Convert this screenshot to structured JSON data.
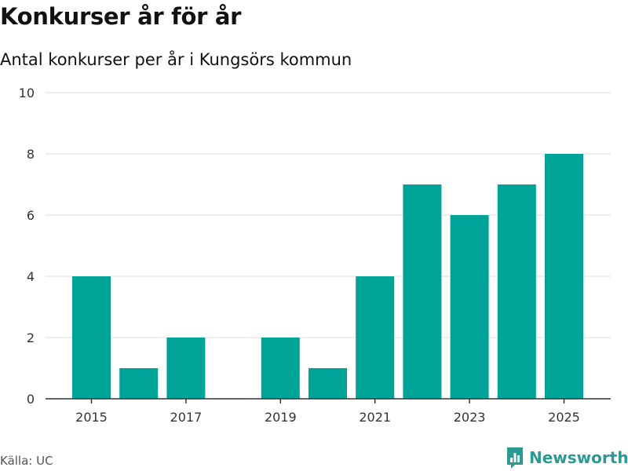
{
  "header": {
    "title": "Konkurser år för år",
    "subtitle": "Antal konkurser per år i Kungsörs kommun"
  },
  "footer": {
    "source": "Källa: UC",
    "brand": "Newsworthy"
  },
  "colors": {
    "bar": "#00a398",
    "grid": "#dddddd",
    "axis": "#333333",
    "brand": "#2a9a92"
  },
  "chart_data": {
    "type": "bar",
    "title": "Konkurser år för år",
    "subtitle": "Antal konkurser per år i Kungsörs kommun",
    "xlabel": "",
    "ylabel": "",
    "categories": [
      2015,
      2016,
      2017,
      2018,
      2019,
      2020,
      2021,
      2022,
      2023,
      2024,
      2025
    ],
    "values": [
      4,
      1,
      2,
      0,
      2,
      1,
      4,
      7,
      6,
      7,
      8
    ],
    "x_tick_labels": [
      "2015",
      "2017",
      "2019",
      "2021",
      "2023",
      "2025"
    ],
    "y_ticks": [
      0,
      2,
      4,
      6,
      8,
      10
    ],
    "ylim": [
      0,
      10
    ],
    "grid": true,
    "legend": "none"
  }
}
